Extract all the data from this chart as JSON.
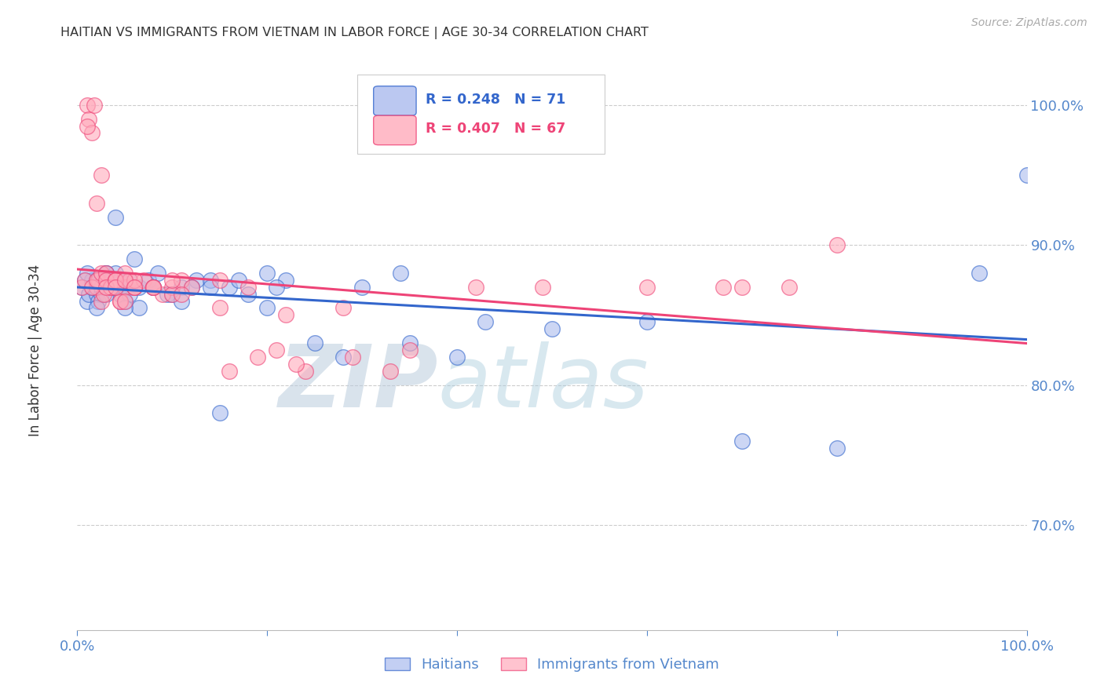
{
  "title": "HAITIAN VS IMMIGRANTS FROM VIETNAM IN LABOR FORCE | AGE 30-34 CORRELATION CHART",
  "source": "Source: ZipAtlas.com",
  "ylabel": "In Labor Force | Age 30-34",
  "xlabel": "",
  "legend_labels": [
    "Haitians",
    "Immigrants from Vietnam"
  ],
  "blue_R": 0.248,
  "blue_N": 71,
  "pink_R": 0.407,
  "pink_N": 67,
  "blue_color": "#AABBEE",
  "pink_color": "#FFAABB",
  "blue_line_color": "#3366CC",
  "pink_line_color": "#EE4477",
  "watermark_zip": "ZIP",
  "watermark_atlas": "atlas",
  "watermark_color_zip": "#BBCCDD",
  "watermark_color_atlas": "#AABBCC",
  "title_color": "#333333",
  "source_color": "#AAAAAA",
  "axis_color": "#5588CC",
  "grid_color": "#CCCCCC",
  "xmin": 0.0,
  "xmax": 1.0,
  "ymin": 0.625,
  "ymax": 1.045,
  "ytick_positions": [
    0.7,
    0.8,
    0.9,
    1.0
  ],
  "ytick_labels": [
    "70.0%",
    "80.0%",
    "90.0%",
    "100.0%"
  ],
  "xtick_positions": [
    0.0,
    0.2,
    0.4,
    0.6,
    0.8,
    1.0
  ],
  "xtick_labels": [
    "0.0%",
    "",
    "",
    "",
    "",
    "100.0%"
  ],
  "blue_x": [
    0.005,
    0.008,
    0.01,
    0.012,
    0.015,
    0.018,
    0.02,
    0.022,
    0.025,
    0.028,
    0.01,
    0.015,
    0.02,
    0.025,
    0.03,
    0.035,
    0.04,
    0.045,
    0.05,
    0.055,
    0.02,
    0.025,
    0.03,
    0.035,
    0.04,
    0.045,
    0.05,
    0.055,
    0.06,
    0.065,
    0.03,
    0.038,
    0.045,
    0.055,
    0.065,
    0.075,
    0.085,
    0.095,
    0.11,
    0.125,
    0.04,
    0.06,
    0.08,
    0.1,
    0.12,
    0.14,
    0.16,
    0.18,
    0.2,
    0.22,
    0.05,
    0.08,
    0.11,
    0.14,
    0.17,
    0.21,
    0.25,
    0.3,
    0.35,
    0.4,
    0.15,
    0.2,
    0.28,
    0.34,
    0.43,
    0.5,
    0.6,
    0.7,
    0.8,
    0.95,
    1.0
  ],
  "blue_y": [
    0.87,
    0.875,
    0.86,
    0.865,
    0.875,
    0.87,
    0.865,
    0.86,
    0.87,
    0.875,
    0.88,
    0.87,
    0.875,
    0.865,
    0.88,
    0.875,
    0.87,
    0.865,
    0.875,
    0.87,
    0.855,
    0.87,
    0.865,
    0.875,
    0.88,
    0.87,
    0.86,
    0.875,
    0.87,
    0.855,
    0.88,
    0.87,
    0.875,
    0.865,
    0.87,
    0.875,
    0.88,
    0.865,
    0.87,
    0.875,
    0.92,
    0.89,
    0.87,
    0.865,
    0.87,
    0.875,
    0.87,
    0.865,
    0.88,
    0.875,
    0.855,
    0.87,
    0.86,
    0.87,
    0.875,
    0.87,
    0.83,
    0.87,
    0.83,
    0.82,
    0.78,
    0.855,
    0.82,
    0.88,
    0.845,
    0.84,
    0.845,
    0.76,
    0.755,
    0.88,
    0.95
  ],
  "pink_x": [
    0.005,
    0.008,
    0.01,
    0.012,
    0.015,
    0.018,
    0.02,
    0.022,
    0.025,
    0.028,
    0.01,
    0.015,
    0.02,
    0.025,
    0.03,
    0.035,
    0.04,
    0.045,
    0.05,
    0.02,
    0.025,
    0.03,
    0.035,
    0.04,
    0.045,
    0.05,
    0.055,
    0.06,
    0.03,
    0.04,
    0.05,
    0.06,
    0.07,
    0.08,
    0.09,
    0.1,
    0.11,
    0.04,
    0.06,
    0.08,
    0.1,
    0.12,
    0.15,
    0.18,
    0.21,
    0.24,
    0.05,
    0.08,
    0.11,
    0.15,
    0.19,
    0.23,
    0.28,
    0.33,
    0.06,
    0.1,
    0.16,
    0.22,
    0.29,
    0.35,
    0.42,
    0.49,
    0.6,
    0.68,
    0.7,
    0.75,
    0.8
  ],
  "pink_y": [
    0.87,
    0.875,
    1.0,
    0.99,
    0.98,
    1.0,
    0.87,
    0.875,
    0.86,
    0.865,
    0.985,
    0.87,
    0.875,
    0.88,
    0.88,
    0.87,
    0.875,
    0.86,
    0.88,
    0.93,
    0.95,
    0.875,
    0.87,
    0.875,
    0.86,
    0.87,
    0.875,
    0.87,
    0.87,
    0.875,
    0.86,
    0.87,
    0.875,
    0.87,
    0.865,
    0.87,
    0.875,
    0.87,
    0.875,
    0.87,
    0.865,
    0.87,
    0.875,
    0.87,
    0.825,
    0.81,
    0.875,
    0.87,
    0.865,
    0.855,
    0.82,
    0.815,
    0.855,
    0.81,
    0.87,
    0.875,
    0.81,
    0.85,
    0.82,
    0.825,
    0.87,
    0.87,
    0.87,
    0.87,
    0.87,
    0.87,
    0.9
  ]
}
